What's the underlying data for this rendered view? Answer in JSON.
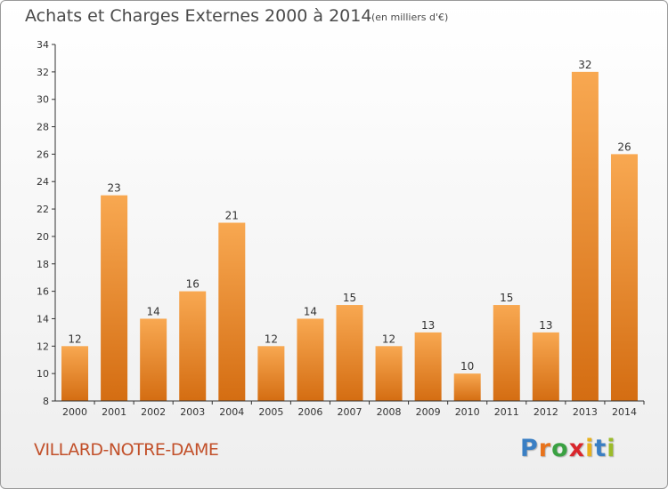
{
  "header": {
    "title": "Achats et Charges Externes 2000 à 2014",
    "subtitle": "(en milliers d'€)"
  },
  "footer": {
    "commune": "VILLARD-NOTRE-DAME",
    "logo": {
      "letters": [
        "P",
        "r",
        "o",
        "x",
        "i",
        "t",
        "i"
      ],
      "colors": [
        "#3a7fc4",
        "#e8731c",
        "#3aa142",
        "#d9262c",
        "#e8b11c",
        "#3a7fc4",
        "#9bbb2a"
      ]
    }
  },
  "colors": {
    "bar_light": "#f8a851",
    "bar_dark": "#d46d12",
    "axis": "#333333",
    "grid": "#d8d8d8",
    "text": "#333333"
  },
  "chart_data": {
    "type": "bar",
    "title": "Achats et Charges Externes 2000 à 2014",
    "subtitle": "(en milliers d'€)",
    "categories": [
      "2000",
      "2001",
      "2002",
      "2003",
      "2004",
      "2005",
      "2006",
      "2007",
      "2008",
      "2009",
      "2010",
      "2011",
      "2012",
      "2013",
      "2014"
    ],
    "values": [
      12,
      23,
      14,
      16,
      21,
      12,
      14,
      15,
      12,
      13,
      10,
      15,
      13,
      32,
      26
    ],
    "ylim": [
      8,
      34
    ],
    "yticks": [
      8,
      10,
      12,
      14,
      16,
      18,
      20,
      22,
      24,
      26,
      28,
      30,
      32,
      34
    ],
    "grid": false,
    "data_labels": true
  }
}
